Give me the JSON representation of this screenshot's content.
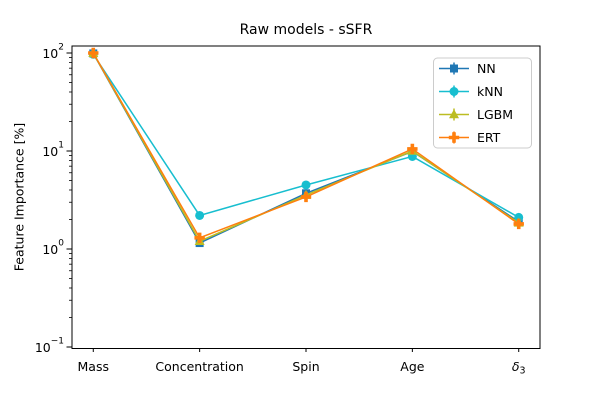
{
  "chart_data": {
    "type": "line",
    "title": "Raw models - sSFR",
    "xlabel": "",
    "ylabel": "Feature Importance [%]",
    "yscale": "log",
    "ylim": [
      0.1,
      100
    ],
    "grid": false,
    "legend_position": "upper right",
    "categories": [
      {
        "label": "Mass"
      },
      {
        "label": "Concentration"
      },
      {
        "label": "Spin"
      },
      {
        "label": "Age"
      },
      {
        "label": "δ",
        "subscript": "3",
        "italic": true
      }
    ],
    "y_ticks": [
      {
        "base": "10",
        "exp": "2",
        "value": 100
      },
      {
        "base": "10",
        "exp": "1",
        "value": 10
      },
      {
        "base": "10",
        "exp": "0",
        "value": 1
      },
      {
        "base": "10",
        "exp": "−1",
        "value": 0.1
      }
    ],
    "series": [
      {
        "name": "NN",
        "color": "#1f77b4",
        "marker": "square",
        "values": [
          99.0,
          1.15,
          3.7,
          9.9,
          1.9
        ]
      },
      {
        "name": "kNN",
        "color": "#17becf",
        "marker": "circle",
        "values": [
          97.0,
          2.2,
          4.5,
          8.8,
          2.1
        ]
      },
      {
        "name": "LGBM",
        "color": "#bcbd22",
        "marker": "triangle",
        "values": [
          99.5,
          1.2,
          3.55,
          10.0,
          1.85
        ]
      },
      {
        "name": "ERT",
        "color": "#ff7f0e",
        "marker": "plus",
        "values": [
          100.0,
          1.3,
          3.4,
          10.5,
          1.8
        ]
      }
    ],
    "colors": {
      "spine": "#000000",
      "legend_border": "#cccccc",
      "background": "#ffffff"
    }
  }
}
